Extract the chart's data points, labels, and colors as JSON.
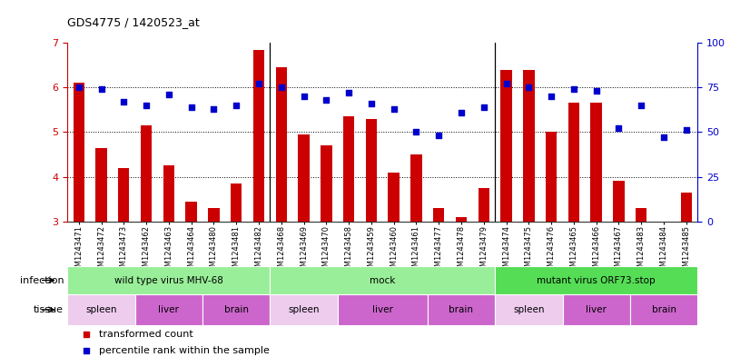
{
  "title": "GDS4775 / 1420523_at",
  "samples": [
    "GSM1243471",
    "GSM1243472",
    "GSM1243473",
    "GSM1243462",
    "GSM1243463",
    "GSM1243464",
    "GSM1243480",
    "GSM1243481",
    "GSM1243482",
    "GSM1243468",
    "GSM1243469",
    "GSM1243470",
    "GSM1243458",
    "GSM1243459",
    "GSM1243460",
    "GSM1243461",
    "GSM1243477",
    "GSM1243478",
    "GSM1243479",
    "GSM1243474",
    "GSM1243475",
    "GSM1243476",
    "GSM1243465",
    "GSM1243466",
    "GSM1243467",
    "GSM1243483",
    "GSM1243484",
    "GSM1243485"
  ],
  "bar_values": [
    6.1,
    4.65,
    4.2,
    5.15,
    4.25,
    3.45,
    3.3,
    3.85,
    6.85,
    6.45,
    4.95,
    4.7,
    5.35,
    5.3,
    4.1,
    4.5,
    3.3,
    3.1,
    3.75,
    6.4,
    6.4,
    5.0,
    5.65,
    5.65,
    3.9,
    3.3,
    3.0,
    3.65
  ],
  "percentile_values": [
    75,
    74,
    67,
    65,
    71,
    64,
    63,
    65,
    77,
    75,
    70,
    68,
    72,
    66,
    63,
    50,
    48,
    61,
    64,
    77,
    75,
    70,
    74,
    73,
    52,
    65,
    47,
    51
  ],
  "bar_color": "#cc0000",
  "percentile_color": "#0000cc",
  "ylim_left": [
    3,
    7
  ],
  "ylim_right": [
    0,
    100
  ],
  "yticks_left": [
    3,
    4,
    5,
    6,
    7
  ],
  "yticks_right": [
    0,
    25,
    50,
    75,
    100
  ],
  "infection_groups": [
    {
      "label": "wild type virus MHV-68",
      "start": 0,
      "end": 9,
      "color": "#99ee99"
    },
    {
      "label": "mock",
      "start": 9,
      "end": 19,
      "color": "#99ee99"
    },
    {
      "label": "mutant virus ORF73.stop",
      "start": 19,
      "end": 28,
      "color": "#55dd55"
    }
  ],
  "tissue_groups": [
    {
      "label": "spleen",
      "start": 0,
      "end": 3,
      "color": "#eeccee"
    },
    {
      "label": "liver",
      "start": 3,
      "end": 6,
      "color": "#cc66cc"
    },
    {
      "label": "brain",
      "start": 6,
      "end": 9,
      "color": "#cc66cc"
    },
    {
      "label": "spleen",
      "start": 9,
      "end": 12,
      "color": "#eeccee"
    },
    {
      "label": "liver",
      "start": 12,
      "end": 16,
      "color": "#cc66cc"
    },
    {
      "label": "brain",
      "start": 16,
      "end": 19,
      "color": "#cc66cc"
    },
    {
      "label": "spleen",
      "start": 19,
      "end": 22,
      "color": "#eeccee"
    },
    {
      "label": "liver",
      "start": 22,
      "end": 25,
      "color": "#cc66cc"
    },
    {
      "label": "brain",
      "start": 25,
      "end": 28,
      "color": "#cc66cc"
    }
  ],
  "bg_color": "#ffffff",
  "grid_dotted_color": "#000000",
  "separator_color": "#000000"
}
